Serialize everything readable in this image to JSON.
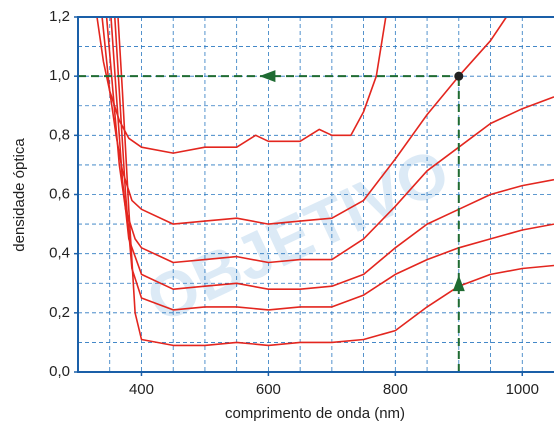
{
  "chart_data": {
    "type": "line",
    "xlabel": "comprimento de onda (nm)",
    "ylabel": "densidade óptica",
    "watermark": "OBJETIVO",
    "xlim": [
      300,
      1050
    ],
    "ylim": [
      0,
      1.2
    ],
    "xticks": [
      400,
      600,
      800,
      1000
    ],
    "yticks": [
      {
        "value": 0,
        "label": "0,0"
      },
      {
        "value": 0.2,
        "label": "0,2"
      },
      {
        "value": 0.4,
        "label": "0,4"
      },
      {
        "value": 0.6,
        "label": "0,6"
      },
      {
        "value": 0.8,
        "label": "0,8"
      },
      {
        "value": 1.0,
        "label": "1,0"
      },
      {
        "value": 1.2,
        "label": "1,2"
      }
    ],
    "x_gridlines": [
      350,
      400,
      450,
      500,
      550,
      600,
      650,
      700,
      750,
      800,
      850,
      900,
      950,
      1000
    ],
    "y_gridlines": [
      0.1,
      0.2,
      0.3,
      0.4,
      0.5,
      0.6,
      0.7,
      0.8,
      0.9,
      1.0,
      1.1
    ],
    "guide_point": {
      "x": 900,
      "y": 1.0,
      "color": "#1f6b32"
    },
    "series": [
      {
        "color": "#e3261f",
        "x": [
          330,
          340,
          350,
          365,
          380,
          400,
          450,
          500,
          550,
          580,
          600,
          650,
          680,
          700,
          730,
          750,
          770,
          785
        ],
        "values": [
          1.2,
          1.05,
          0.95,
          0.85,
          0.79,
          0.76,
          0.74,
          0.76,
          0.76,
          0.8,
          0.78,
          0.78,
          0.82,
          0.8,
          0.8,
          0.88,
          1.0,
          1.2
        ]
      },
      {
        "color": "#e3261f",
        "x": [
          338,
          350,
          360,
          370,
          385,
          400,
          450,
          500,
          550,
          600,
          650,
          700,
          750,
          800,
          850,
          900,
          950,
          975
        ],
        "values": [
          1.2,
          0.95,
          0.8,
          0.68,
          0.58,
          0.55,
          0.5,
          0.51,
          0.52,
          0.5,
          0.51,
          0.52,
          0.58,
          0.72,
          0.87,
          1.0,
          1.12,
          1.2
        ]
      },
      {
        "color": "#e3261f",
        "x": [
          345,
          355,
          365,
          375,
          390,
          400,
          450,
          500,
          550,
          600,
          650,
          700,
          750,
          800,
          850,
          900,
          950,
          1000,
          1050
        ],
        "values": [
          1.2,
          0.95,
          0.7,
          0.55,
          0.45,
          0.42,
          0.37,
          0.38,
          0.39,
          0.37,
          0.38,
          0.38,
          0.45,
          0.56,
          0.68,
          0.76,
          0.84,
          0.89,
          0.93
        ]
      },
      {
        "color": "#e3261f",
        "x": [
          352,
          360,
          370,
          380,
          400,
          450,
          500,
          550,
          600,
          650,
          700,
          750,
          800,
          850,
          900,
          950,
          1000,
          1050
        ],
        "values": [
          1.2,
          0.95,
          0.65,
          0.45,
          0.33,
          0.28,
          0.29,
          0.3,
          0.28,
          0.28,
          0.29,
          0.33,
          0.42,
          0.5,
          0.55,
          0.6,
          0.63,
          0.65
        ]
      },
      {
        "color": "#e3261f",
        "x": [
          358,
          365,
          375,
          385,
          400,
          450,
          500,
          550,
          600,
          650,
          700,
          750,
          800,
          850,
          900,
          950,
          1000,
          1050
        ],
        "values": [
          1.2,
          0.95,
          0.6,
          0.35,
          0.25,
          0.21,
          0.22,
          0.22,
          0.21,
          0.22,
          0.22,
          0.26,
          0.33,
          0.38,
          0.42,
          0.45,
          0.48,
          0.5
        ]
      },
      {
        "color": "#e3261f",
        "x": [
          363,
          370,
          380,
          390,
          400,
          450,
          500,
          550,
          600,
          650,
          700,
          750,
          800,
          850,
          900,
          950,
          1000,
          1050
        ],
        "values": [
          1.2,
          0.95,
          0.55,
          0.2,
          0.11,
          0.09,
          0.09,
          0.1,
          0.09,
          0.1,
          0.1,
          0.11,
          0.14,
          0.22,
          0.29,
          0.33,
          0.35,
          0.36
        ]
      }
    ]
  }
}
